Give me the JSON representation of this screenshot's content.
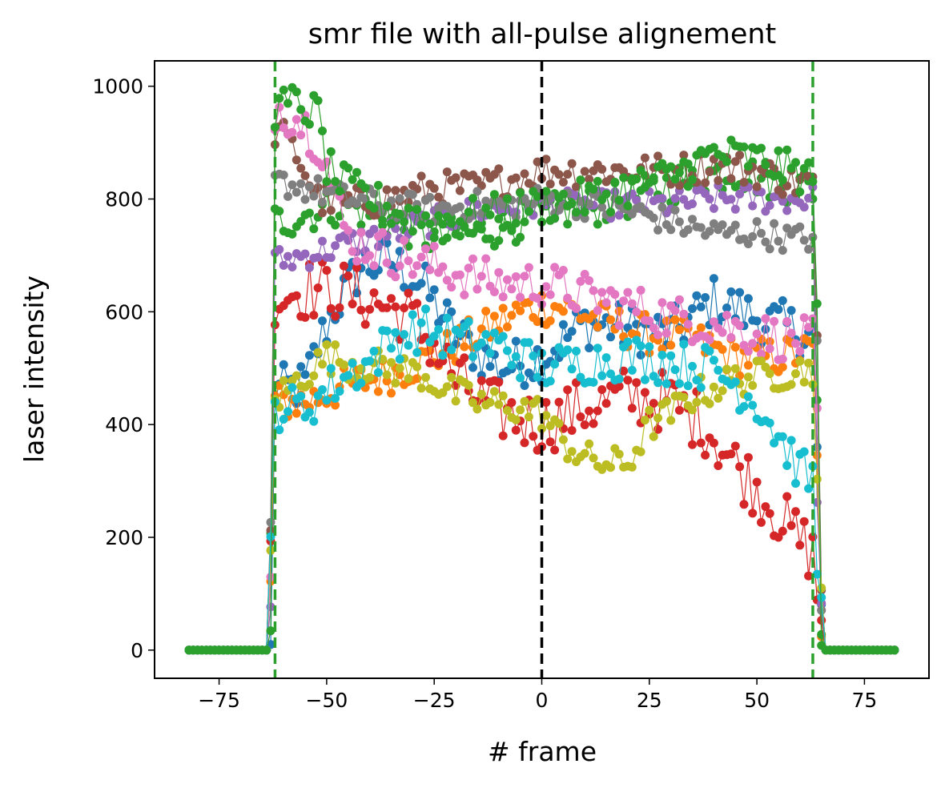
{
  "chart_data": {
    "type": "line",
    "title": "smr file with all-pulse alignement",
    "xlabel": "# frame",
    "ylabel": "laser intensity",
    "xlim": [
      -90,
      90
    ],
    "ylim": [
      -50,
      1045
    ],
    "xticks": [
      -75,
      -50,
      -25,
      0,
      25,
      50,
      75
    ],
    "xtick_labels": [
      "−75",
      "−50",
      "−25",
      "0",
      "25",
      "50",
      "75"
    ],
    "yticks": [
      0,
      200,
      400,
      600,
      800,
      1000
    ],
    "ytick_labels": [
      "0",
      "200",
      "400",
      "600",
      "800",
      "1000"
    ],
    "grid": false,
    "x_range": [
      -82,
      82
    ],
    "pulse_window": [
      -62,
      63
    ],
    "series": [
      {
        "color": "#1f77b4",
        "onset": 0,
        "profile": [
          [
            -61,
            460
          ],
          [
            -55,
            470
          ],
          [
            -52,
            540
          ],
          [
            -48,
            610
          ],
          [
            -42,
            680
          ],
          [
            -35,
            690
          ],
          [
            -28,
            650
          ],
          [
            -20,
            560
          ],
          [
            -10,
            500
          ],
          [
            0,
            520
          ],
          [
            10,
            580
          ],
          [
            20,
            570
          ],
          [
            30,
            560
          ],
          [
            40,
            620
          ],
          [
            50,
            590
          ],
          [
            58,
            570
          ],
          [
            63,
            560
          ]
        ],
        "noise": 45
      },
      {
        "color": "#ff7f0e",
        "onset": 0,
        "profile": [
          [
            -61,
            440
          ],
          [
            -55,
            440
          ],
          [
            -45,
            470
          ],
          [
            -35,
            490
          ],
          [
            -25,
            520
          ],
          [
            -15,
            560
          ],
          [
            -5,
            600
          ],
          [
            0,
            610
          ],
          [
            5,
            610
          ],
          [
            15,
            580
          ],
          [
            25,
            560
          ],
          [
            35,
            550
          ],
          [
            45,
            520
          ],
          [
            55,
            520
          ],
          [
            63,
            530
          ]
        ],
        "noise": 35
      },
      {
        "color": "#2ca02c",
        "onset": 0,
        "profile": [
          [
            -61,
            760
          ],
          [
            -52,
            780
          ],
          [
            -45,
            790
          ],
          [
            -35,
            760
          ],
          [
            -25,
            730
          ],
          [
            -15,
            740
          ],
          [
            -5,
            760
          ],
          [
            0,
            770
          ],
          [
            5,
            780
          ],
          [
            15,
            790
          ],
          [
            25,
            810
          ],
          [
            35,
            840
          ],
          [
            45,
            850
          ],
          [
            55,
            830
          ],
          [
            63,
            820
          ]
        ],
        "noise": 35
      },
      {
        "color": "#d62728",
        "onset": 0,
        "profile": [
          [
            -61,
            630
          ],
          [
            -55,
            640
          ],
          [
            -48,
            640
          ],
          [
            -40,
            620
          ],
          [
            -32,
            600
          ],
          [
            -25,
            540
          ],
          [
            -20,
            480
          ],
          [
            -12,
            430
          ],
          [
            -5,
            410
          ],
          [
            0,
            400
          ],
          [
            10,
            430
          ],
          [
            20,
            450
          ],
          [
            30,
            440
          ],
          [
            38,
            400
          ],
          [
            45,
            330
          ],
          [
            52,
            270
          ],
          [
            57,
            220
          ],
          [
            63,
            170
          ]
        ],
        "noise": 55
      },
      {
        "color": "#9467bd",
        "onset": 0,
        "profile": [
          [
            -61,
            690
          ],
          [
            -55,
            700
          ],
          [
            -45,
            720
          ],
          [
            -35,
            740
          ],
          [
            -25,
            760
          ],
          [
            -15,
            780
          ],
          [
            -5,
            790
          ],
          [
            0,
            790
          ],
          [
            10,
            790
          ],
          [
            20,
            790
          ],
          [
            30,
            790
          ],
          [
            40,
            800
          ],
          [
            50,
            800
          ],
          [
            58,
            800
          ],
          [
            63,
            800
          ]
        ],
        "noise": 25
      },
      {
        "color": "#8c564b",
        "onset": 0,
        "profile": [
          [
            -61,
            920
          ],
          [
            -57,
            880
          ],
          [
            -52,
            800
          ],
          [
            -45,
            790
          ],
          [
            -35,
            800
          ],
          [
            -25,
            820
          ],
          [
            -15,
            820
          ],
          [
            -5,
            840
          ],
          [
            0,
            850
          ],
          [
            10,
            850
          ],
          [
            20,
            850
          ],
          [
            30,
            850
          ],
          [
            40,
            860
          ],
          [
            50,
            850
          ],
          [
            58,
            830
          ],
          [
            63,
            830
          ]
        ],
        "noise": 30
      },
      {
        "color": "#e377c2",
        "onset": 0,
        "profile": [
          [
            -61,
            960
          ],
          [
            -58,
            950
          ],
          [
            -55,
            930
          ],
          [
            -51,
            890
          ],
          [
            -48,
            800
          ],
          [
            -45,
            730
          ],
          [
            -38,
            710
          ],
          [
            -30,
            690
          ],
          [
            -20,
            670
          ],
          [
            -10,
            650
          ],
          [
            0,
            650
          ],
          [
            10,
            630
          ],
          [
            20,
            610
          ],
          [
            30,
            590
          ],
          [
            40,
            580
          ],
          [
            50,
            560
          ],
          [
            58,
            550
          ],
          [
            63,
            550
          ]
        ],
        "noise": 40
      },
      {
        "color": "#7f7f7f",
        "onset": 0,
        "profile": [
          [
            -61,
            830
          ],
          [
            -55,
            820
          ],
          [
            -45,
            800
          ],
          [
            -35,
            790
          ],
          [
            -25,
            780
          ],
          [
            -15,
            790
          ],
          [
            -5,
            790
          ],
          [
            0,
            800
          ],
          [
            10,
            790
          ],
          [
            20,
            780
          ],
          [
            30,
            760
          ],
          [
            40,
            740
          ],
          [
            50,
            740
          ],
          [
            58,
            730
          ],
          [
            63,
            730
          ]
        ],
        "noise": 25
      },
      {
        "color": "#bcbd22",
        "onset": 0,
        "profile": [
          [
            -61,
            450
          ],
          [
            -55,
            490
          ],
          [
            -50,
            520
          ],
          [
            -45,
            510
          ],
          [
            -35,
            500
          ],
          [
            -28,
            490
          ],
          [
            -22,
            460
          ],
          [
            -15,
            440
          ],
          [
            -5,
            430
          ],
          [
            0,
            420
          ],
          [
            5,
            370
          ],
          [
            10,
            340
          ],
          [
            15,
            330
          ],
          [
            20,
            330
          ],
          [
            25,
            400
          ],
          [
            30,
            420
          ],
          [
            35,
            450
          ],
          [
            45,
            480
          ],
          [
            55,
            490
          ],
          [
            63,
            500
          ]
        ],
        "noise": 30
      },
      {
        "color": "#17becf",
        "onset": 0,
        "profile": [
          [
            -61,
            430
          ],
          [
            -55,
            430
          ],
          [
            -45,
            490
          ],
          [
            -40,
            510
          ],
          [
            -35,
            550
          ],
          [
            -28,
            570
          ],
          [
            -20,
            550
          ],
          [
            -10,
            540
          ],
          [
            0,
            500
          ],
          [
            10,
            510
          ],
          [
            20,
            520
          ],
          [
            30,
            510
          ],
          [
            40,
            500
          ],
          [
            50,
            440
          ],
          [
            55,
            380
          ],
          [
            60,
            320
          ],
          [
            63,
            300
          ]
        ],
        "noise": 40
      },
      {
        "color": "#2ca02c",
        "onset": 0,
        "profile": [
          [
            -61,
            960
          ],
          [
            -58,
            970
          ],
          [
            -55,
            960
          ],
          [
            -52,
            950
          ],
          [
            -50,
            860
          ],
          [
            -47,
            830
          ],
          [
            -42,
            810
          ],
          [
            -35,
            780
          ],
          [
            -25,
            760
          ],
          [
            -15,
            770
          ],
          [
            -5,
            780
          ],
          [
            0,
            790
          ],
          [
            10,
            800
          ],
          [
            20,
            820
          ],
          [
            30,
            840
          ],
          [
            40,
            880
          ],
          [
            50,
            870
          ],
          [
            58,
            850
          ],
          [
            63,
            840
          ]
        ],
        "noise": 35
      }
    ]
  }
}
